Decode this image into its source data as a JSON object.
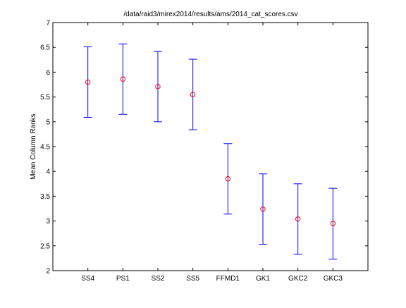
{
  "chart_data": {
    "type": "scatter",
    "title": "/data/raid3/mirex2014/results/ams/2014_cat_scores.csv",
    "xlabel": "",
    "ylabel": "Mean Column Ranks",
    "categories": [
      "SS4",
      "PS1",
      "SS2",
      "SS5",
      "FFMD1",
      "GK1",
      "GKC2",
      "GKC3"
    ],
    "series": [
      {
        "mean": [
          5.8,
          5.86,
          5.71,
          5.55,
          3.85,
          3.24,
          3.04,
          2.95
        ],
        "lower": [
          5.09,
          5.15,
          5.0,
          4.84,
          3.14,
          2.53,
          2.33,
          2.23
        ],
        "upper": [
          6.51,
          6.57,
          6.42,
          6.26,
          4.56,
          3.95,
          3.75,
          3.66
        ]
      }
    ],
    "ylim": [
      2,
      7
    ],
    "yticks": [
      "2",
      "2.5",
      "3",
      "3.5",
      "4",
      "4.5",
      "5",
      "5.5",
      "6",
      "6.5",
      "7"
    ],
    "grid": false,
    "colors": {
      "errorbar": "#0000ff",
      "marker": "#ff0000",
      "axes": "#000000"
    }
  }
}
